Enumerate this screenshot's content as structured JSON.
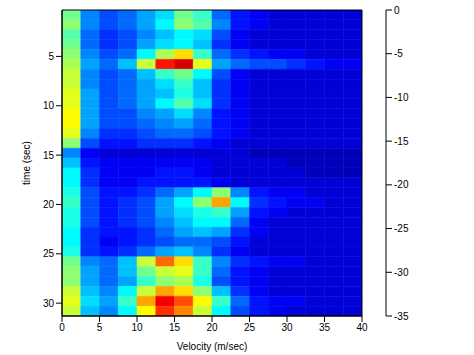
{
  "chart_data": {
    "type": "heatmap",
    "x_label": "Velocity (m/sec)",
    "y_label": "time (sec)",
    "xlim": [
      0,
      40
    ],
    "xticks": [
      0,
      5,
      10,
      15,
      20,
      25,
      30,
      35,
      40
    ],
    "ylim": [
      0.3,
      31.3
    ],
    "yticks": [
      5,
      10,
      15,
      20,
      25,
      30
    ],
    "cells": {
      "x": [
        1.25,
        3.75,
        6.25,
        8.75,
        11.25,
        13.75,
        16.25,
        18.75,
        21.25,
        23.75,
        26.25,
        28.75,
        31.25,
        33.75,
        36.25,
        38.75
      ],
      "y": [
        0.8,
        1.8,
        2.8,
        3.8,
        4.8,
        5.8,
        6.8,
        7.8,
        8.8,
        9.8,
        10.8,
        11.8,
        12.8,
        13.8,
        14.8,
        15.8,
        16.8,
        17.8,
        18.8,
        19.8,
        20.8,
        21.8,
        22.8,
        23.8,
        24.8,
        25.8,
        26.8,
        27.8,
        28.8,
        29.8,
        30.8
      ],
      "values": [
        [
          -18,
          -26,
          -28,
          -27,
          -25,
          -23,
          -18,
          -20,
          -27,
          -30,
          -31,
          -32,
          -32,
          -32,
          -32,
          -32
        ],
        [
          -17,
          -26,
          -28,
          -27,
          -25,
          -22,
          -17,
          -19,
          -26,
          -30,
          -31,
          -32,
          -32,
          -32,
          -32,
          -32
        ],
        [
          -19,
          -27,
          -29,
          -28,
          -26,
          -24,
          -22,
          -23,
          -28,
          -31,
          -32,
          -32,
          -32,
          -32,
          -32,
          -32
        ],
        [
          -18,
          -27,
          -29,
          -28,
          -25,
          -23,
          -22,
          -24,
          -29,
          -31,
          -32,
          -32,
          -32,
          -32,
          -32,
          -32
        ],
        [
          -17,
          -26,
          -28,
          -27,
          -22,
          -16,
          -12,
          -20,
          -27,
          -29,
          -30,
          -31,
          -31,
          -32,
          -32,
          -32
        ],
        [
          -16,
          -25,
          -27,
          -24,
          -15,
          -5,
          -3,
          -14,
          -25,
          -27,
          -28,
          -28,
          -29,
          -30,
          -31,
          -31
        ],
        [
          -15,
          -26,
          -28,
          -27,
          -24,
          -20,
          -18,
          -22,
          -28,
          -31,
          -32,
          -32,
          -32,
          -32,
          -32,
          -32
        ],
        [
          -15,
          -26,
          -28,
          -27,
          -25,
          -23,
          -20,
          -24,
          -29,
          -31,
          -32,
          -32,
          -32,
          -32,
          -32,
          -32
        ],
        [
          -14,
          -25,
          -28,
          -27,
          -25,
          -24,
          -21,
          -24,
          -29,
          -31,
          -32,
          -32,
          -32,
          -32,
          -32,
          -32
        ],
        [
          -14,
          -25,
          -28,
          -27,
          -25,
          -22,
          -19,
          -23,
          -29,
          -31,
          -32,
          -32,
          -32,
          -32,
          -32,
          -32
        ],
        [
          -13,
          -25,
          -28,
          -28,
          -26,
          -25,
          -23,
          -26,
          -30,
          -31,
          -32,
          -32,
          -32,
          -32,
          -32,
          -32
        ],
        [
          -13,
          -25,
          -28,
          -28,
          -27,
          -26,
          -25,
          -27,
          -30,
          -31,
          -32,
          -32,
          -32,
          -32,
          -32,
          -32
        ],
        [
          -14,
          -26,
          -29,
          -29,
          -28,
          -27,
          -27,
          -28,
          -30,
          -31,
          -32,
          -32,
          -32,
          -32,
          -32,
          -32
        ],
        [
          -17,
          -28,
          -30,
          -30,
          -29,
          -29,
          -29,
          -30,
          -31,
          -32,
          -32,
          -32,
          -32,
          -32,
          -32,
          -32
        ],
        [
          -26,
          -31,
          -32,
          -32,
          -32,
          -32,
          -32,
          -32,
          -32,
          -32,
          -33,
          -33,
          -33,
          -33,
          -33,
          -33
        ],
        [
          -24,
          -30,
          -31,
          -31,
          -31,
          -31,
          -31,
          -31,
          -32,
          -32,
          -32,
          -32,
          -33,
          -33,
          -33,
          -33
        ],
        [
          -22,
          -29,
          -31,
          -31,
          -31,
          -30,
          -30,
          -31,
          -32,
          -32,
          -32,
          -32,
          -32,
          -33,
          -33,
          -33
        ],
        [
          -22,
          -29,
          -31,
          -31,
          -30,
          -30,
          -30,
          -30,
          -31,
          -32,
          -32,
          -32,
          -32,
          -32,
          -32,
          -32
        ],
        [
          -21,
          -28,
          -30,
          -30,
          -29,
          -27,
          -25,
          -22,
          -17,
          -26,
          -30,
          -31,
          -31,
          -32,
          -32,
          -32
        ],
        [
          -20,
          -28,
          -30,
          -29,
          -28,
          -25,
          -22,
          -17,
          -10,
          -22,
          -29,
          -30,
          -31,
          -31,
          -32,
          -32
        ],
        [
          -21,
          -28,
          -30,
          -29,
          -28,
          -25,
          -23,
          -21,
          -20,
          -25,
          -30,
          -31,
          -32,
          -32,
          -32,
          -32
        ],
        [
          -21,
          -28,
          -30,
          -29,
          -28,
          -26,
          -24,
          -22,
          -22,
          -27,
          -31,
          -32,
          -32,
          -32,
          -32,
          -32
        ],
        [
          -22,
          -29,
          -30,
          -30,
          -29,
          -27,
          -25,
          -24,
          -25,
          -29,
          -31,
          -32,
          -32,
          -32,
          -32,
          -32
        ],
        [
          -22,
          -29,
          -31,
          -30,
          -29,
          -28,
          -27,
          -27,
          -28,
          -30,
          -32,
          -32,
          -32,
          -32,
          -32,
          -32
        ],
        [
          -21,
          -29,
          -30,
          -29,
          -27,
          -25,
          -24,
          -26,
          -29,
          -31,
          -32,
          -32,
          -32,
          -32,
          -32,
          -32
        ],
        [
          -18,
          -26,
          -27,
          -24,
          -15,
          -8,
          -12,
          -20,
          -26,
          -29,
          -30,
          -31,
          -31,
          -32,
          -32,
          -32
        ],
        [
          -17,
          -25,
          -27,
          -24,
          -18,
          -15,
          -14,
          -20,
          -27,
          -30,
          -31,
          -32,
          -32,
          -32,
          -32,
          -32
        ],
        [
          -17,
          -25,
          -27,
          -25,
          -20,
          -17,
          -16,
          -21,
          -28,
          -30,
          -31,
          -32,
          -32,
          -32,
          -32,
          -32
        ],
        [
          -15,
          -24,
          -26,
          -22,
          -15,
          -10,
          -12,
          -17,
          -24,
          -29,
          -31,
          -32,
          -32,
          -32,
          -32,
          -32
        ],
        [
          -14,
          -23,
          -25,
          -20,
          -10,
          -4,
          -7,
          -13,
          -20,
          -27,
          -30,
          -31,
          -31,
          -32,
          -32,
          -32
        ],
        [
          -15,
          -24,
          -26,
          -22,
          -13,
          -6,
          -9,
          -15,
          -22,
          -28,
          -30,
          -31,
          -32,
          -32,
          -32,
          -32
        ]
      ]
    },
    "colorbar": {
      "range": [
        -35,
        0
      ],
      "ticks": [
        0,
        -5,
        -10,
        -15,
        -20,
        -25,
        -30,
        -35
      ]
    }
  }
}
